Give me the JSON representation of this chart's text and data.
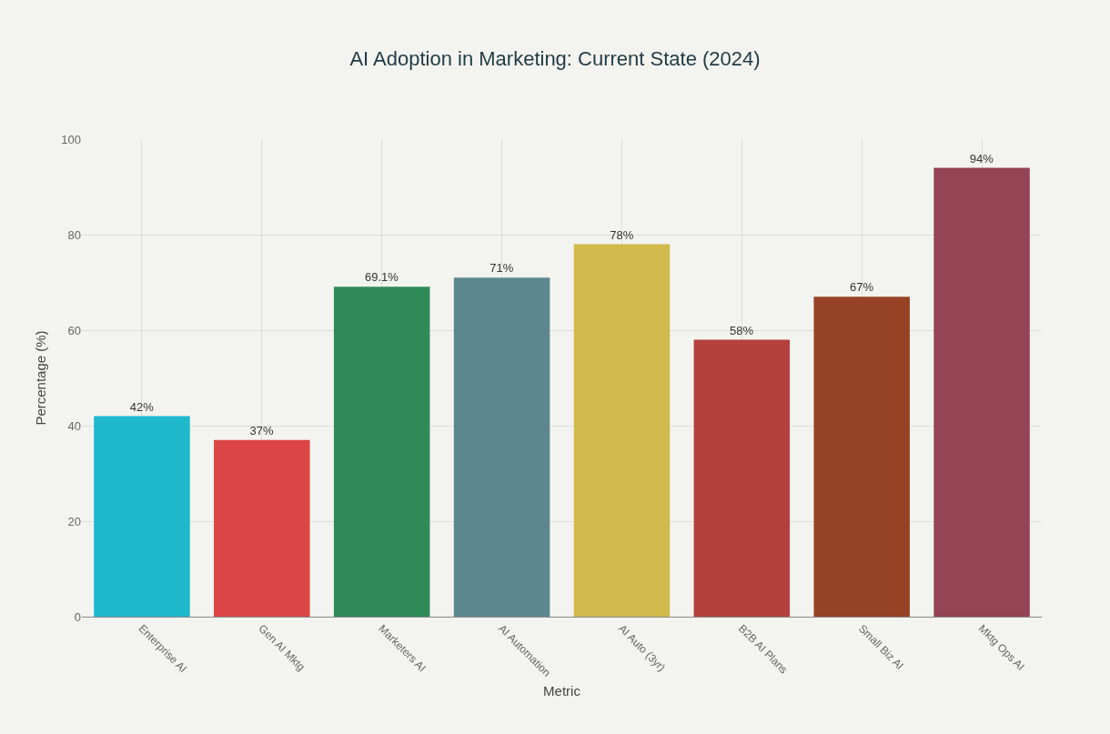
{
  "chart_data": {
    "type": "bar",
    "title": "AI Adoption in Marketing: Current State (2024)",
    "xlabel": "Metric",
    "ylabel": "Percentage (%)",
    "categories": [
      "Enterprise AI",
      "Gen AI Mktg",
      "Marketers AI",
      "AI Automation",
      "AI Auto (3yr)",
      "B2B AI Plans",
      "Small Biz AI",
      "Mktg Ops AI"
    ],
    "values": [
      42,
      37,
      69.1,
      71,
      78,
      58,
      67,
      94
    ],
    "value_labels": [
      "42%",
      "37%",
      "69.1%",
      "71%",
      "78%",
      "58%",
      "67%",
      "94%"
    ],
    "colors": [
      "#1fb8cd",
      "#db4545",
      "#2e8b57",
      "#5d878f",
      "#d2ba4c",
      "#b4413c",
      "#964325",
      "#944454"
    ],
    "ylim": [
      0,
      100
    ],
    "yticks": [
      0,
      20,
      40,
      60,
      80,
      100
    ],
    "grid": true
  }
}
